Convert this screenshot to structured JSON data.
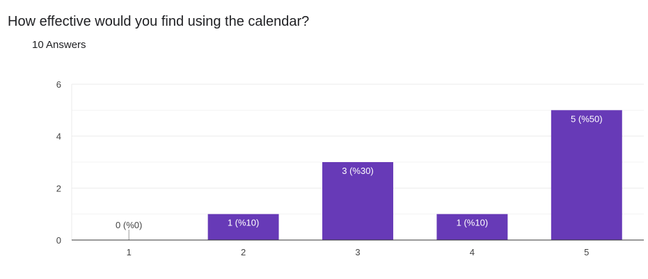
{
  "question": {
    "title": "How effective would you find using the calendar?",
    "answer_count": "10 Answers"
  },
  "colors": {
    "bar": "#673ab7",
    "gridline": "#ebebeb",
    "axis": "#333333",
    "label_inside": "#ffffff",
    "label_outside": "#444444"
  },
  "chart_data": {
    "type": "bar",
    "title": "",
    "xlabel": "",
    "ylabel": "",
    "categories": [
      "1",
      "2",
      "3",
      "4",
      "5"
    ],
    "values": [
      0,
      1,
      3,
      1,
      5
    ],
    "data_labels": [
      "0 (%0)",
      "1 (%10)",
      "3 (%30)",
      "1 (%10)",
      "5 (%50)"
    ],
    "ylim": [
      0,
      6
    ],
    "yticks": [
      0,
      2,
      4,
      6
    ],
    "minor_gridlines": [
      1,
      3,
      5
    ],
    "grid": true,
    "legend": "none"
  }
}
